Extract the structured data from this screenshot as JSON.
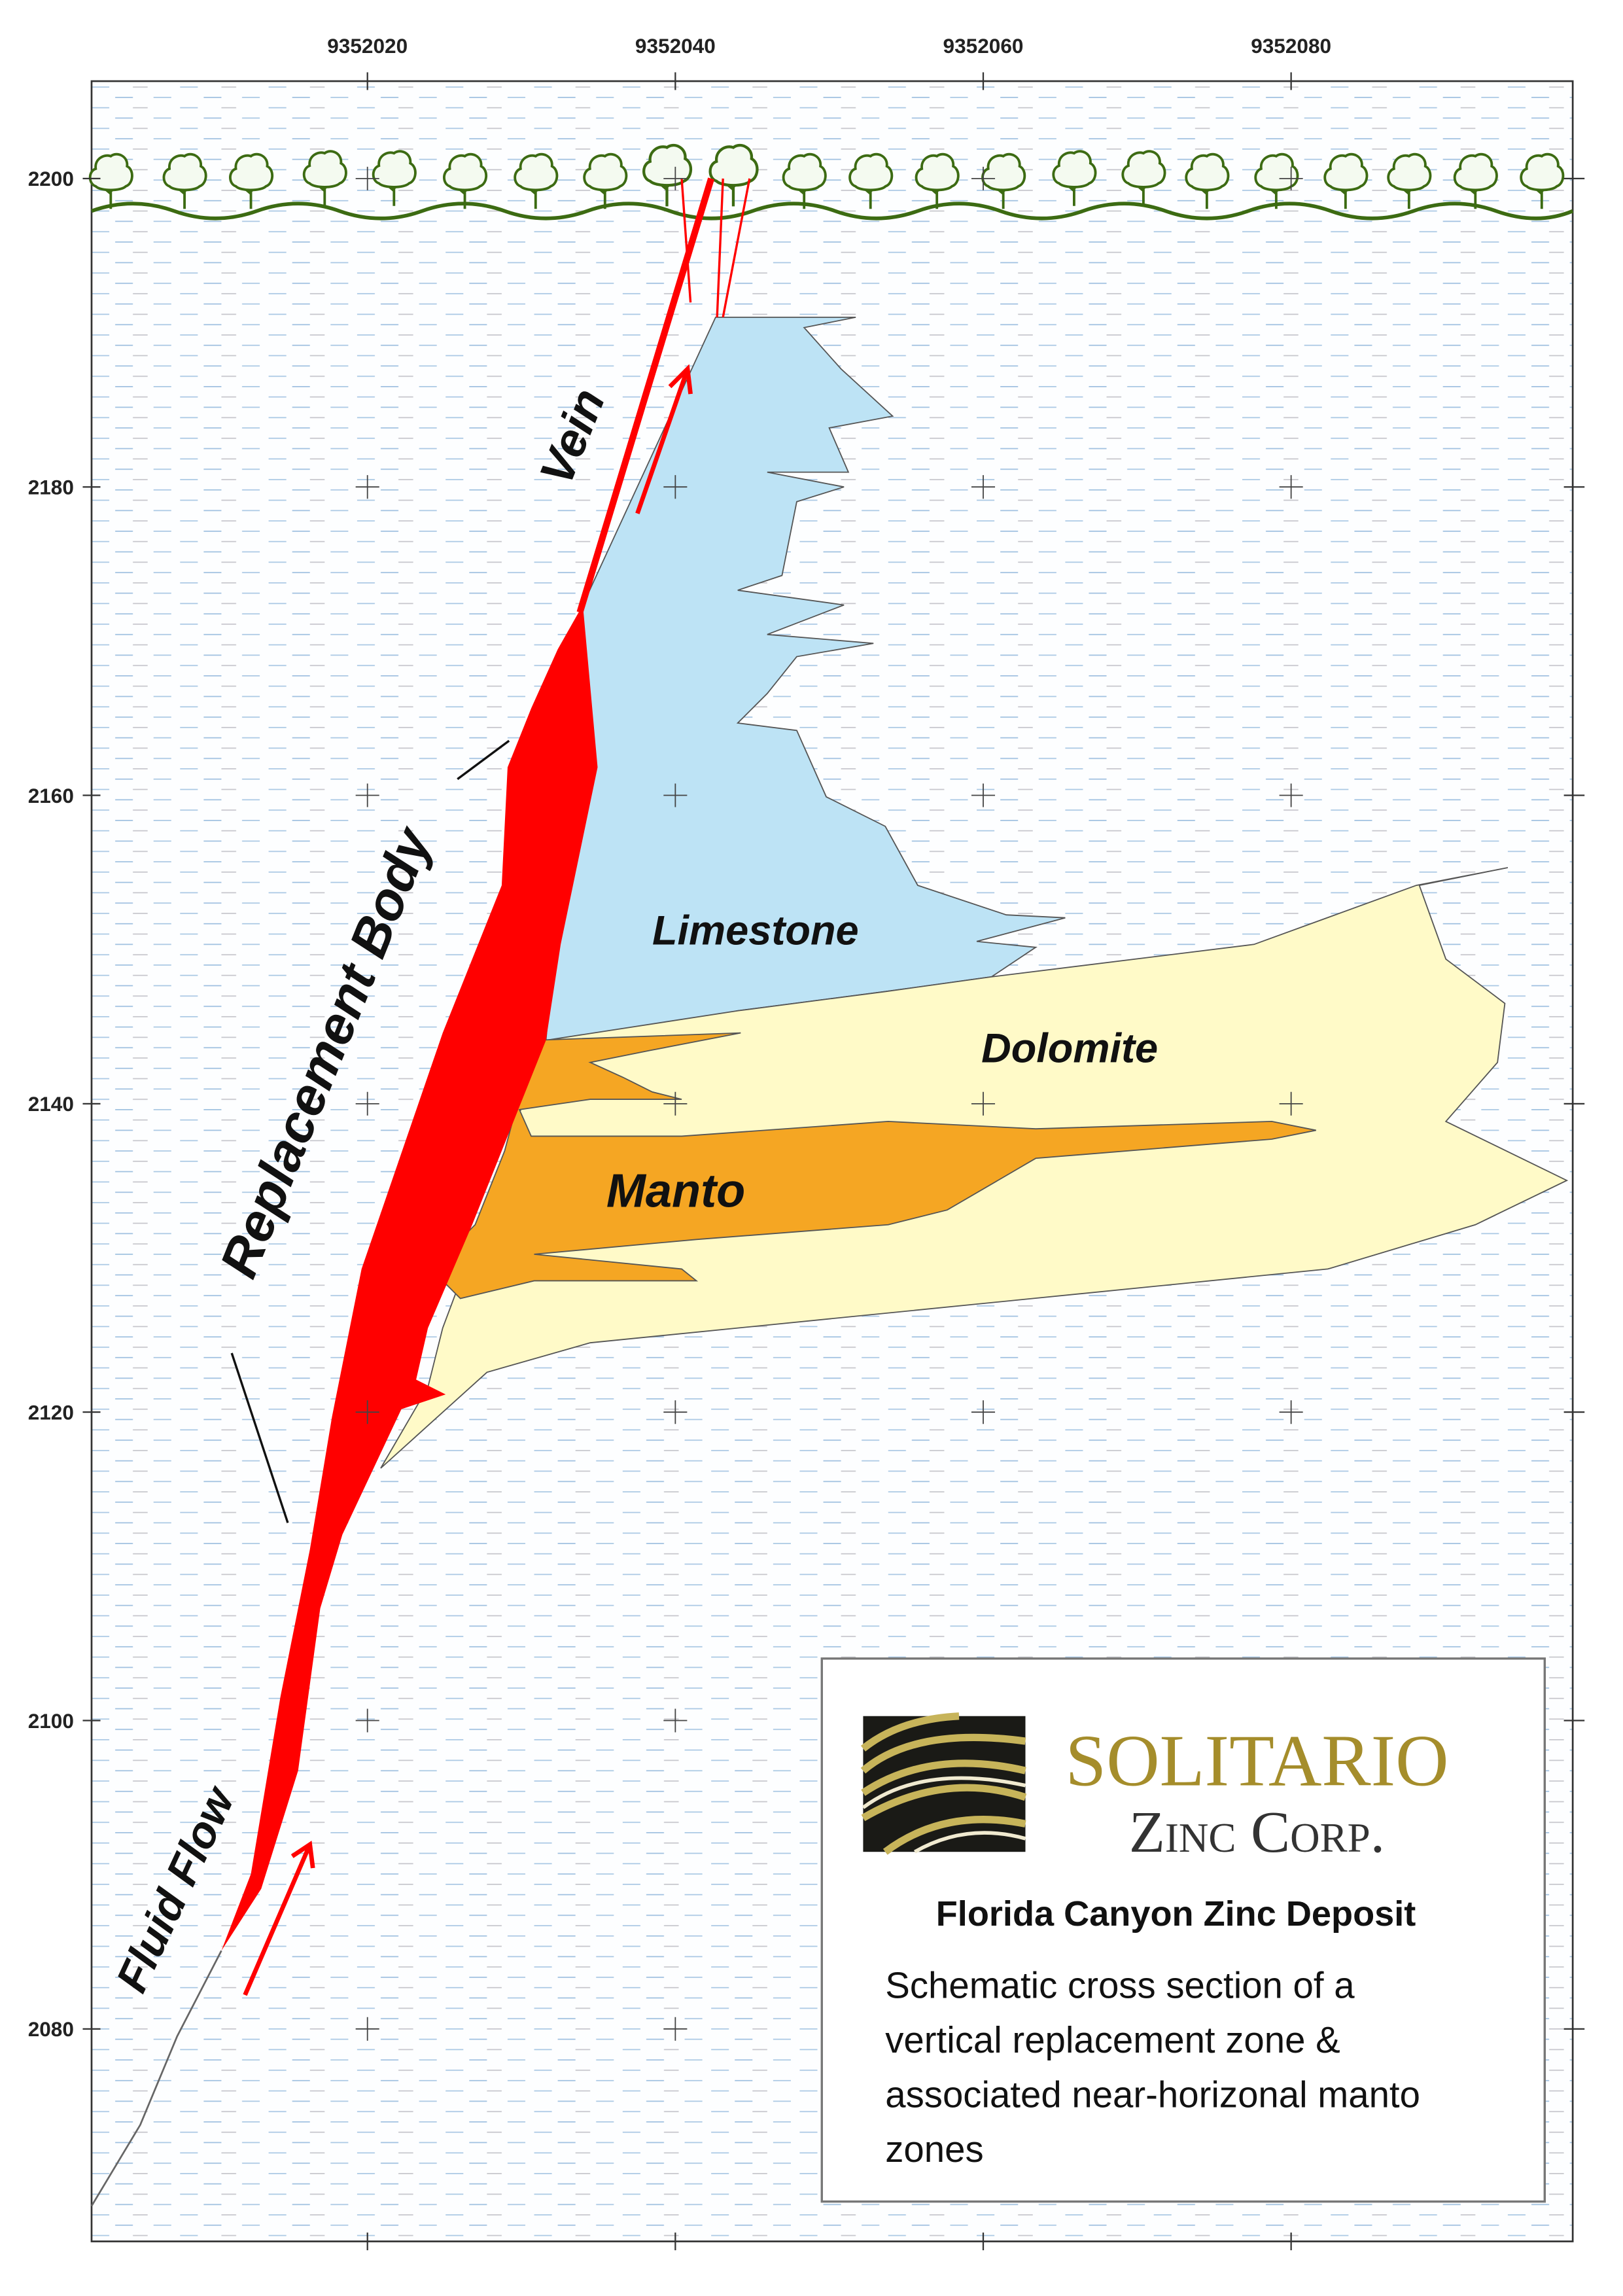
{
  "axes": {
    "x_ticks": [
      9352020,
      9352040,
      9352060,
      9352080
    ],
    "y_ticks": [
      2200,
      2180,
      2160,
      2140,
      2120,
      2100,
      2080
    ]
  },
  "labels": {
    "vein": "Vein",
    "replacement_body": "Replacement Body",
    "limestone": "Limestone",
    "dolomite": "Dolomite",
    "manto": "Manto",
    "fluid_flow": "Fluid Flow"
  },
  "legend": {
    "logo_name": "SOLITARIO",
    "logo_subtitle": "Zinc Corp.",
    "title": "Florida Canyon Zinc Deposit",
    "description": [
      "Schematic cross section of a",
      "vertical replacement zone &",
      "associated near-horizonal manto",
      "zones"
    ]
  }
}
